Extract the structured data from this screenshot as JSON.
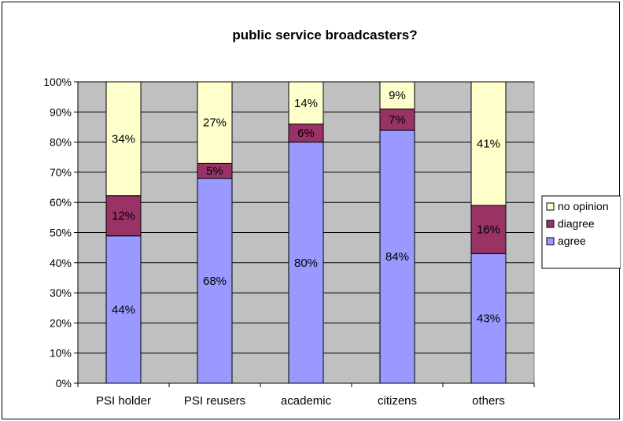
{
  "chart_data": {
    "type": "bar",
    "stacked": true,
    "percent_stacked": true,
    "title": "public service broadcasters?",
    "categories": [
      "PSI holder",
      "PSI reusers",
      "academic",
      "citizens",
      "others"
    ],
    "series": [
      {
        "name": "agree",
        "color": "#9999FF",
        "values": [
          44,
          68,
          80,
          84,
          43
        ],
        "labels": [
          "44%",
          "68%",
          "80%",
          "84%",
          "43%"
        ]
      },
      {
        "name": "diagree",
        "color": "#993366",
        "values": [
          12,
          5,
          6,
          7,
          16
        ],
        "labels": [
          "12%",
          "5%",
          "6%",
          "7%",
          "16%"
        ]
      },
      {
        "name": "no opinion",
        "color": "#FFFFCC",
        "values": [
          34,
          27,
          14,
          9,
          41
        ],
        "labels": [
          "34%",
          "27%",
          "14%",
          "9%",
          "41%"
        ]
      }
    ],
    "ylim": [
      0,
      100
    ],
    "yticks": [
      "0%",
      "10%",
      "20%",
      "30%",
      "40%",
      "50%",
      "60%",
      "70%",
      "80%",
      "90%",
      "100%"
    ],
    "grid": true,
    "plot_background": "#C0C0C0",
    "legend": {
      "position": "right",
      "order": [
        "no opinion",
        "diagree",
        "agree"
      ]
    }
  }
}
